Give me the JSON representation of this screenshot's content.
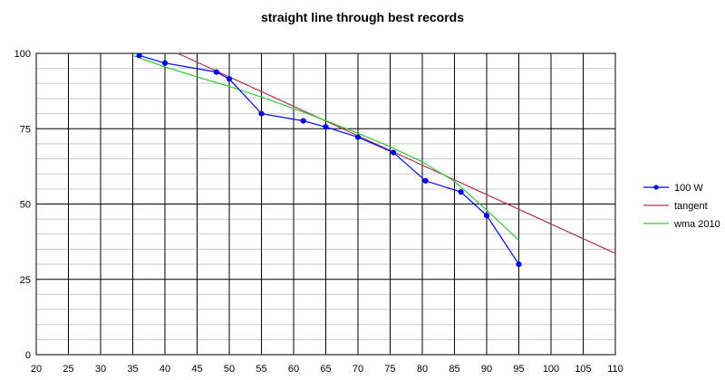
{
  "chart_data": {
    "type": "line",
    "title": "straight line through best records",
    "xlabel": "",
    "ylabel": "",
    "xlim": [
      20,
      110
    ],
    "ylim": [
      0,
      100
    ],
    "x_ticks": [
      20,
      25,
      30,
      35,
      40,
      45,
      50,
      55,
      60,
      65,
      70,
      75,
      80,
      85,
      90,
      95,
      100,
      105,
      110
    ],
    "y_ticks": [
      0,
      25,
      50,
      75,
      100
    ],
    "grid": true,
    "legend_position": "right",
    "series": [
      {
        "name": "100 W",
        "color": "#0000ff",
        "markers": true,
        "x": [
          36,
          40,
          48,
          50,
          55,
          61.5,
          65,
          70,
          75.5,
          80.5,
          86,
          90,
          95
        ],
        "y": [
          99.3,
          96.8,
          93.8,
          91.5,
          80,
          77.6,
          75.6,
          72.2,
          67.1,
          57.7,
          54,
          46.2,
          30
        ]
      },
      {
        "name": "tangent",
        "color": "#b03060",
        "markers": false,
        "x": [
          42,
          110
        ],
        "y": [
          100,
          33.6
        ]
      },
      {
        "name": "wma 2010",
        "color": "#33cc33",
        "markers": false,
        "x": [
          35,
          40,
          45,
          50,
          55,
          60,
          65,
          70,
          75,
          80,
          85,
          90,
          95
        ],
        "y": [
          99.3,
          95.5,
          92.2,
          89,
          85.5,
          81.7,
          77.7,
          73.5,
          69,
          64,
          57.5,
          48,
          38
        ]
      }
    ]
  }
}
